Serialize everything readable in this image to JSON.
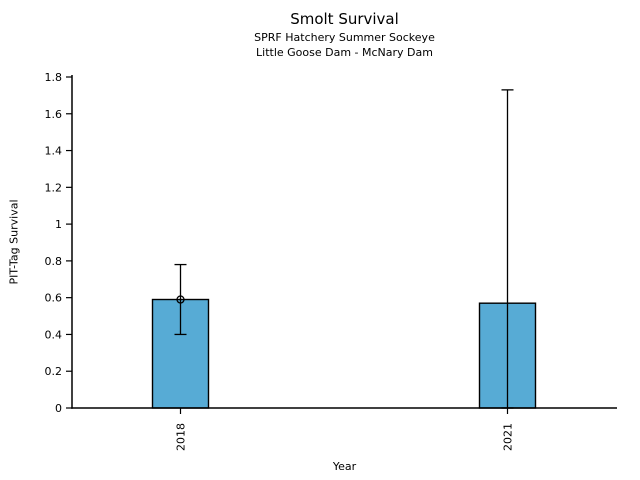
{
  "chart_data": {
    "type": "bar",
    "title": "Smolt Survival",
    "subtitle_line1": "SPRF Hatchery Summer Sockeye",
    "subtitle_line2": "Little Goose Dam - McNary Dam",
    "xlabel": "Year",
    "ylabel": "PIT-Tag Survival",
    "categories": [
      "2018",
      "2021"
    ],
    "values": [
      0.59,
      0.57
    ],
    "error_low": [
      0.4,
      0.0
    ],
    "error_high": [
      0.78,
      1.73
    ],
    "point_markers": [
      0.59,
      null
    ],
    "ylim": [
      0,
      1.8
    ],
    "yticks": [
      0,
      0.2,
      0.4,
      0.6,
      0.8,
      1,
      1.2,
      1.4,
      1.6,
      1.8
    ],
    "ytick_labels": [
      "0",
      "0.2",
      "0.4",
      "0.6",
      "0.8",
      "1",
      "1.2",
      "1.4",
      "1.6",
      "1.8"
    ],
    "x_tick_label_rotation": 90,
    "grid": false,
    "legend": null,
    "bar_color": "#57ABD5",
    "bar_edge_color": "#000000",
    "axis_color": "#000000",
    "background_color": "#FFFFFF"
  }
}
